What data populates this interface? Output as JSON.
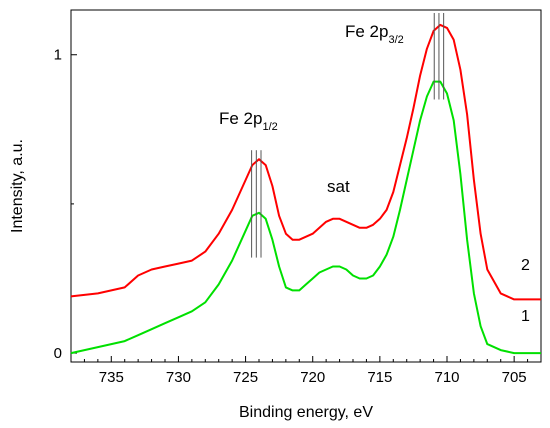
{
  "chart_data": {
    "type": "line",
    "xlabel": "Binding energy, eV",
    "ylabel": "Intensity, a.u.",
    "xlim": [
      738,
      703
    ],
    "ylim": [
      -0.03,
      1.15
    ],
    "x_reversed": true,
    "x_ticks": [
      735,
      730,
      725,
      720,
      715,
      710,
      705
    ],
    "y_ticks": [
      0,
      1
    ],
    "x_tick_labels": [
      "735",
      "730",
      "725",
      "720",
      "715",
      "710",
      "705"
    ],
    "y_tick_labels": [
      "0",
      "1"
    ],
    "grid": false,
    "legend": "none",
    "series": [
      {
        "name": "2",
        "color": "#ff0000",
        "x": [
          738,
          736,
          734,
          733,
          732,
          731,
          730,
          729,
          728,
          727,
          726,
          725,
          724.5,
          724,
          723.5,
          723,
          722.5,
          722,
          721.5,
          721,
          720.5,
          720,
          719.5,
          719,
          718.5,
          718,
          717.5,
          717,
          716.5,
          716,
          715.5,
          715,
          714.5,
          714,
          713.5,
          713,
          712.5,
          712,
          711.5,
          711,
          710.5,
          710,
          709.5,
          709,
          708.5,
          708,
          707.5,
          707,
          706,
          705,
          704,
          703
        ],
        "values": [
          0.19,
          0.2,
          0.22,
          0.26,
          0.28,
          0.29,
          0.3,
          0.31,
          0.34,
          0.4,
          0.48,
          0.58,
          0.63,
          0.65,
          0.63,
          0.56,
          0.46,
          0.4,
          0.38,
          0.38,
          0.39,
          0.4,
          0.42,
          0.44,
          0.45,
          0.45,
          0.44,
          0.43,
          0.42,
          0.42,
          0.43,
          0.45,
          0.48,
          0.54,
          0.63,
          0.72,
          0.82,
          0.93,
          1.02,
          1.08,
          1.1,
          1.09,
          1.05,
          0.95,
          0.8,
          0.58,
          0.4,
          0.28,
          0.2,
          0.18,
          0.18,
          0.18
        ]
      },
      {
        "name": "1",
        "color": "#00e000",
        "x": [
          738,
          736,
          734,
          733,
          732,
          731,
          730,
          729,
          728,
          727,
          726,
          725,
          724.5,
          724,
          723.5,
          723,
          722.5,
          722,
          721.5,
          721,
          720.5,
          720,
          719.5,
          719,
          718.5,
          718,
          717.5,
          717,
          716.5,
          716,
          715.5,
          715,
          714.5,
          714,
          713.5,
          713,
          712.5,
          712,
          711.5,
          711,
          710.5,
          710,
          709.5,
          709,
          708.5,
          708,
          707.5,
          707,
          706,
          705,
          704,
          703
        ],
        "values": [
          0.0,
          0.02,
          0.04,
          0.06,
          0.08,
          0.1,
          0.12,
          0.14,
          0.17,
          0.23,
          0.31,
          0.41,
          0.46,
          0.47,
          0.45,
          0.38,
          0.29,
          0.22,
          0.21,
          0.21,
          0.23,
          0.25,
          0.27,
          0.28,
          0.29,
          0.29,
          0.28,
          0.26,
          0.25,
          0.25,
          0.26,
          0.29,
          0.33,
          0.39,
          0.48,
          0.58,
          0.68,
          0.78,
          0.86,
          0.91,
          0.91,
          0.87,
          0.78,
          0.6,
          0.38,
          0.2,
          0.09,
          0.03,
          0.01,
          0.0,
          0.0,
          0.0
        ]
      }
    ],
    "annotations": {
      "fe2p32": {
        "main": "Fe 2p",
        "sub": "3/2",
        "x": 710.6
      },
      "fe2p12": {
        "main": "Fe 2p",
        "sub": "1/2",
        "x": 724.2
      },
      "sat": {
        "text": "sat"
      },
      "curve_label_2": "2",
      "curve_label_1": "1"
    }
  }
}
